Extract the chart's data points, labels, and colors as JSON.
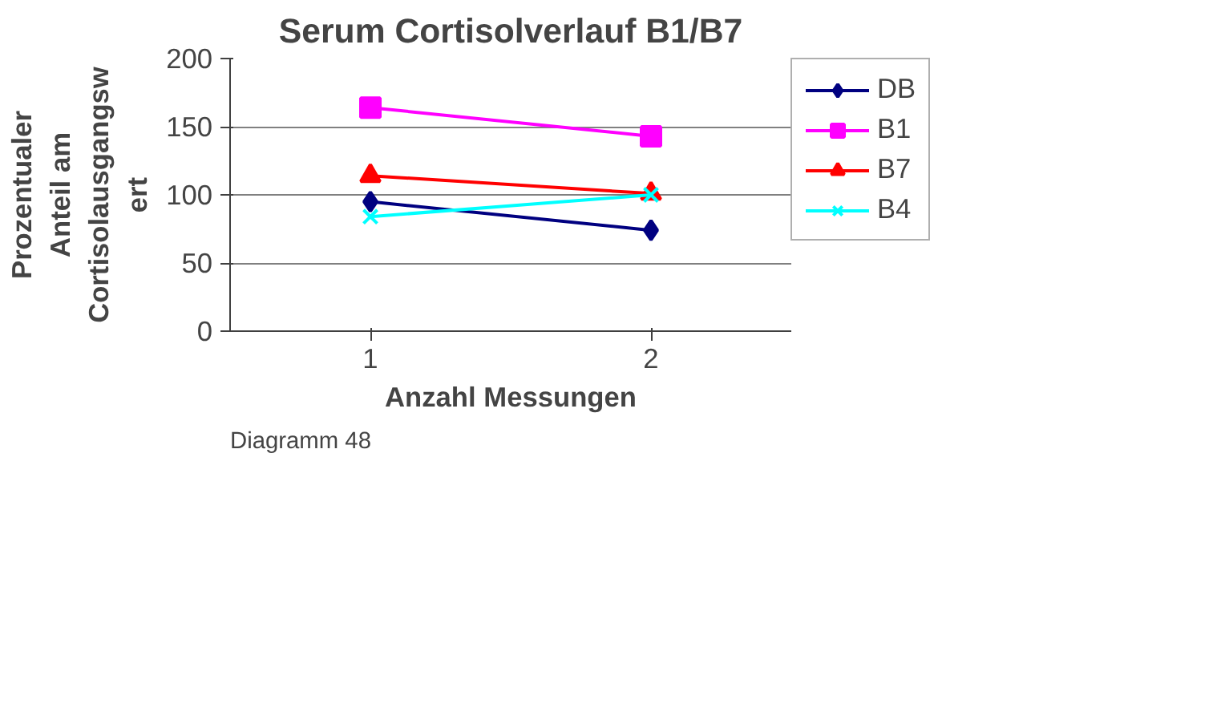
{
  "chart_data": {
    "type": "line",
    "title": "Serum Cortisolverlauf B1/B7",
    "xlabel": "Anzahl Messungen",
    "ylabel": "Prozentualer\nAnteil am\nCortisolausgangsw\nert",
    "categories": [
      "1",
      "2"
    ],
    "ylim": [
      0,
      200
    ],
    "yticks": [
      0,
      50,
      100,
      150,
      200
    ],
    "grid": "y",
    "legend": "right",
    "series": [
      {
        "name": "DB",
        "color": "#000080",
        "marker": "diamond",
        "values": [
          95,
          74
        ]
      },
      {
        "name": "B1",
        "color": "#ff00ff",
        "marker": "square",
        "values": [
          164,
          143
        ]
      },
      {
        "name": "B7",
        "color": "#ff0000",
        "marker": "triangle",
        "values": [
          114,
          101
        ]
      },
      {
        "name": "B4",
        "color": "#00ffff",
        "marker": "cross",
        "values": [
          84,
          100
        ]
      }
    ],
    "annotations": [
      "Diagramm 48"
    ]
  }
}
